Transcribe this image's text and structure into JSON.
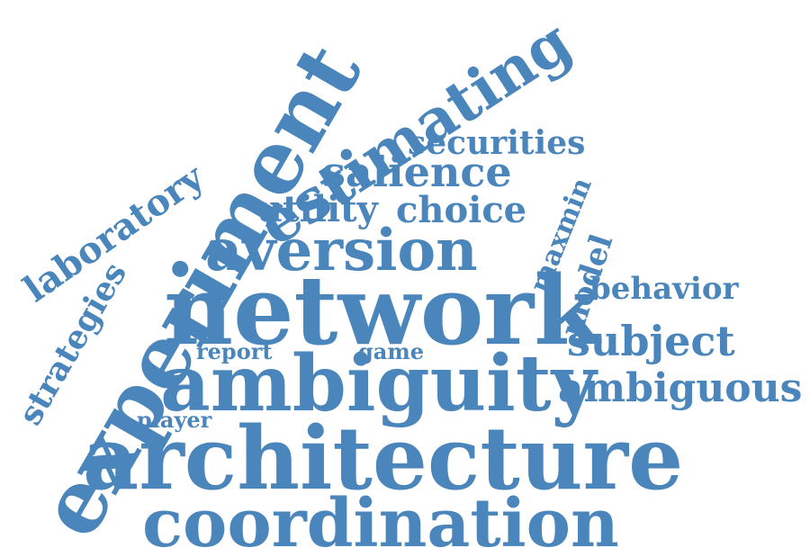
{
  "word_color": "#4a86bb",
  "background_color": "#ffffff",
  "words": {
    "network": "network",
    "architecture": "architecture",
    "ambiguity": "ambiguity",
    "experiment": "experiment",
    "coordination": "coordination",
    "aversion": "aversion",
    "estimating": "estimating",
    "salience": "salience",
    "ambiguous": "ambiguous",
    "subject": "subject",
    "laboratory": "laboratory",
    "strategies": "strategies",
    "securities": "securities",
    "utility": "utility",
    "choice": "choice",
    "behavior": "behavior",
    "model": "model",
    "maxmin": "maxmin",
    "report": "report",
    "game": "game",
    "player": "player"
  }
}
